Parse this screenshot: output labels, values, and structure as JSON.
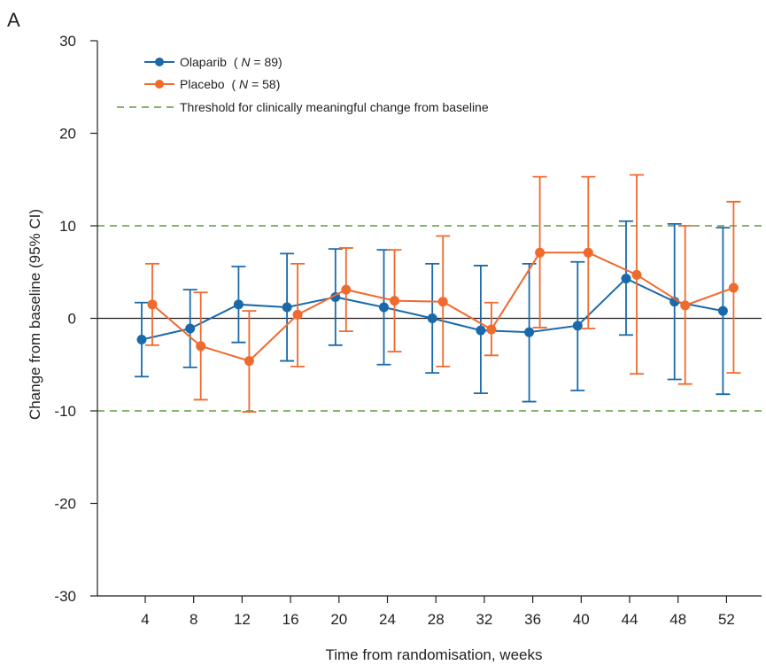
{
  "panel_label": "A",
  "colors": {
    "olaparib": "#1a6aab",
    "placebo": "#ef6a2e",
    "threshold": "#5f9b3c",
    "axis": "#231f20"
  },
  "legend": {
    "olaparib": {
      "name": "Olaparib",
      "n_prefix": "(",
      "n_symbol": "N",
      "n_suffix": " = 89)"
    },
    "placebo": {
      "name": "Placebo",
      "n_prefix": "(",
      "n_symbol": "N",
      "n_suffix": " = 58)"
    },
    "threshold": "Threshold for clinically meaningful change from baseline"
  },
  "chart_data": {
    "type": "line",
    "xlabel": "Time from randomisation, weeks",
    "ylabel": "Change from baseline (95% CI)",
    "ylim": [
      -30,
      30
    ],
    "yticks": [
      30,
      20,
      10,
      0,
      -10,
      -20,
      -30
    ],
    "categories": [
      "4",
      "8",
      "12",
      "16",
      "20",
      "24",
      "28",
      "32",
      "36",
      "40",
      "44",
      "48",
      "52"
    ],
    "threshold_lines": [
      10,
      -10
    ],
    "reference_line": 0,
    "error_bars": "95% CI",
    "series": [
      {
        "name": "Olaparib (N = 89)",
        "color": "#1a6aab",
        "values": [
          -2.3,
          -1.1,
          1.5,
          1.2,
          2.3,
          1.2,
          0.0,
          -1.3,
          -1.5,
          -0.8,
          4.3,
          1.8,
          0.8
        ],
        "lower": [
          -6.3,
          -5.3,
          -2.6,
          -4.6,
          -2.9,
          -5.0,
          -5.9,
          -8.1,
          -9.0,
          -7.8,
          -1.8,
          -6.6,
          -8.2
        ],
        "upper": [
          1.7,
          3.1,
          5.6,
          7.0,
          7.5,
          7.4,
          5.9,
          5.7,
          5.9,
          6.1,
          10.5,
          10.2,
          9.8
        ]
      },
      {
        "name": "Placebo (N = 58)",
        "color": "#ef6a2e",
        "values": [
          1.5,
          -3.0,
          -4.6,
          0.4,
          3.1,
          1.9,
          1.8,
          -1.2,
          7.1,
          7.1,
          4.7,
          1.4,
          3.3
        ],
        "lower": [
          -2.9,
          -8.8,
          -10.1,
          -5.2,
          -1.4,
          -3.6,
          -5.2,
          -4.0,
          -1.0,
          -1.1,
          -6.0,
          -7.1,
          -5.9
        ],
        "upper": [
          5.9,
          2.8,
          0.8,
          5.9,
          7.6,
          7.4,
          8.9,
          1.7,
          15.3,
          15.3,
          15.5,
          10.0,
          12.6
        ]
      }
    ]
  }
}
